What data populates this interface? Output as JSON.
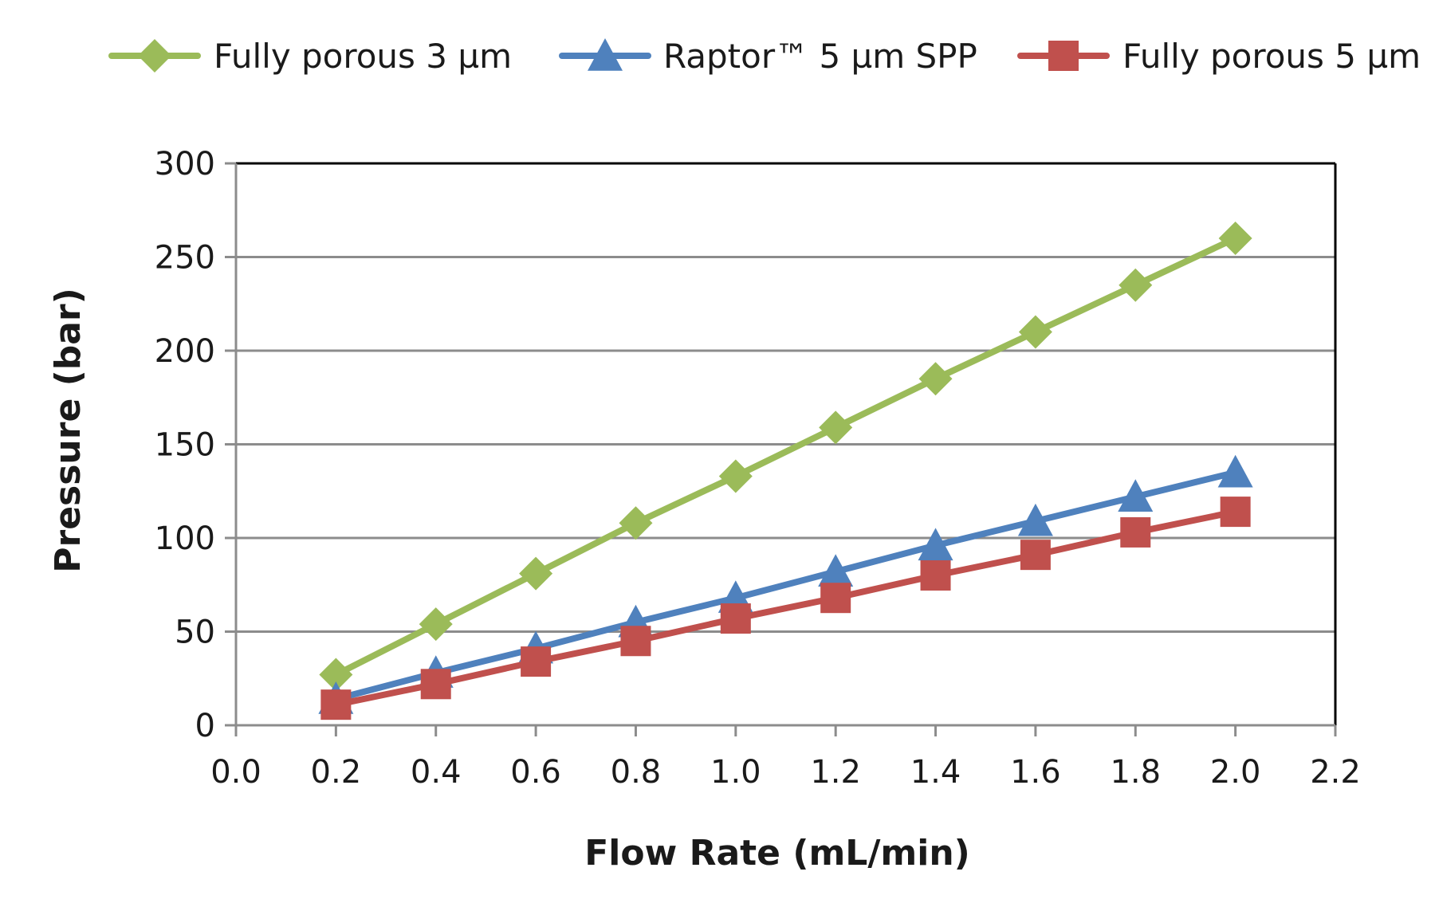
{
  "chart_data": {
    "type": "line",
    "title": "",
    "xlabel": "Flow Rate (mL/min)",
    "ylabel": "Pressure (bar)",
    "xlim": [
      0.0,
      2.2
    ],
    "ylim": [
      0,
      300
    ],
    "x_ticks": [
      0.0,
      0.2,
      0.4,
      0.6,
      0.8,
      1.0,
      1.2,
      1.4,
      1.6,
      1.8,
      2.0,
      2.2
    ],
    "x_tick_labels": [
      "0.0",
      "0.2",
      "0.4",
      "0.6",
      "0.8",
      "1.0",
      "1.2",
      "1.4",
      "1.6",
      "1.8",
      "2.0",
      "2.2"
    ],
    "y_ticks": [
      0,
      50,
      100,
      150,
      200,
      250,
      300
    ],
    "y_tick_labels": [
      "0",
      "50",
      "100",
      "150",
      "200",
      "250",
      "300"
    ],
    "grid": true,
    "legend_position": "top",
    "x": [
      0.2,
      0.4,
      0.6,
      0.8,
      1.0,
      1.2,
      1.4,
      1.6,
      1.8,
      2.0
    ],
    "series": [
      {
        "name": "Fully porous 3 µm",
        "color": "#9bbb59",
        "marker": "diamond",
        "values": [
          27,
          54,
          81,
          108,
          133,
          159,
          185,
          210,
          235,
          260
        ]
      },
      {
        "name": "Raptor™ 5 µm SPP",
        "color": "#4f81bd",
        "marker": "triangle",
        "values": [
          14,
          28,
          41,
          55,
          68,
          82,
          96,
          109,
          122,
          135
        ]
      },
      {
        "name": "Fully porous 5 µm",
        "color": "#c0504d",
        "marker": "square",
        "values": [
          11,
          22,
          34,
          45,
          57,
          68,
          80,
          91,
          103,
          114
        ]
      }
    ]
  }
}
